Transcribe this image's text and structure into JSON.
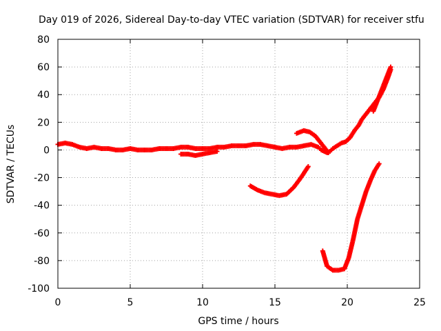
{
  "chart_data": {
    "type": "scatter",
    "title": "Day 019 of 2026, Sidereal Day-to-day VTEC variation (SDTVAR) for receiver stfu",
    "xlabel": "GPS time / hours",
    "ylabel": "SDTVAR / TECUs",
    "xlim": [
      0,
      25
    ],
    "ylim": [
      -100,
      80
    ],
    "xticks": [
      "0",
      "5",
      "10",
      "15",
      "20",
      "25"
    ],
    "yticks": [
      "-100",
      "-80",
      "-60",
      "-40",
      "-20",
      "0",
      "20",
      "40",
      "60",
      "80"
    ],
    "grid": true,
    "marker": "plus",
    "series_color": "#ff0000",
    "series": [
      {
        "x": [
          0,
          0.5,
          1,
          1.5,
          2,
          2.5,
          3,
          3.5,
          4,
          4.5,
          5,
          5.5,
          6,
          6.5,
          7,
          7.5,
          8,
          8.5,
          9,
          9.5,
          10,
          10.5,
          11,
          11.5,
          12,
          12.5,
          13,
          13.5,
          14,
          14.5,
          15,
          15.5,
          16,
          16.5,
          17,
          17.5,
          18,
          18.2,
          18.4,
          18.6,
          18.8,
          19,
          19.3,
          19.6,
          19.9,
          20.2,
          20.5,
          20.8,
          21,
          21.3,
          21.6,
          21.9,
          22.2,
          22.5,
          22.8,
          23
        ],
        "y": [
          4,
          5,
          4,
          2,
          1,
          2,
          1,
          1,
          0,
          0,
          1,
          0,
          0,
          0,
          1,
          1,
          1,
          2,
          2,
          1,
          1,
          1,
          2,
          2,
          3,
          3,
          3,
          4,
          4,
          3,
          2,
          1,
          2,
          2,
          3,
          4,
          2,
          0,
          -1,
          -2,
          -1,
          1,
          3,
          5,
          6,
          9,
          14,
          18,
          22,
          26,
          30,
          34,
          38,
          44,
          52,
          58
        ]
      },
      {
        "x": [
          8.5,
          9,
          9.5,
          10,
          10.5,
          11
        ],
        "y": [
          -3,
          -3,
          -4,
          -3,
          -2,
          -1
        ]
      },
      {
        "x": [
          16.5,
          17,
          17.4,
          17.8,
          18.1,
          18.4,
          18.7
        ],
        "y": [
          12,
          14,
          13,
          10,
          6,
          2,
          -2
        ]
      },
      {
        "x": [
          13.3,
          13.8,
          14.3,
          14.8,
          15.3,
          15.8,
          16.3,
          16.8,
          17.3
        ],
        "y": [
          -26,
          -29,
          -31,
          -32,
          -33,
          -32,
          -27,
          -20,
          -12
        ]
      },
      {
        "x": [
          18.3,
          18.6,
          19.0,
          19.4,
          19.8,
          20.1,
          20.4,
          20.7,
          21.0,
          21.3,
          21.6,
          21.9,
          22.2
        ],
        "y": [
          -73,
          -84,
          -87,
          -87,
          -86,
          -78,
          -65,
          -50,
          -40,
          -30,
          -22,
          -15,
          -10
        ]
      },
      {
        "x": [
          21.8,
          22.1,
          22.4,
          22.7,
          23.0
        ],
        "y": [
          28,
          36,
          44,
          52,
          60
        ]
      }
    ]
  }
}
